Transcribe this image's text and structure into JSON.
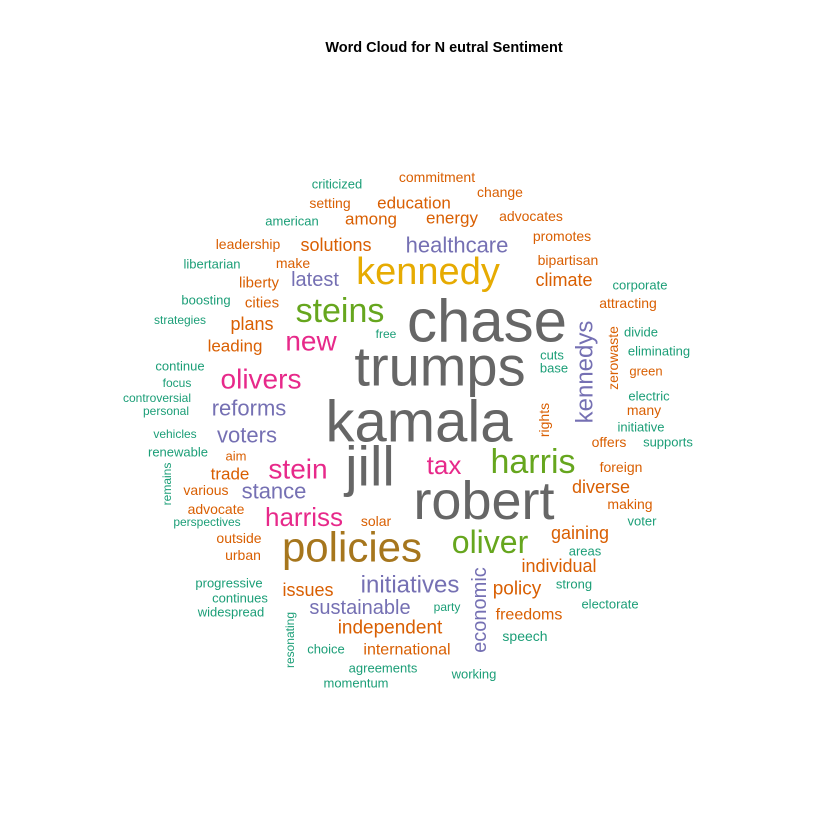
{
  "chart_data": {
    "type": "wordcloud",
    "title": "Word Cloud for N eutral Sentiment",
    "palette": {
      "grey": "#666666",
      "gold": "#E6AB02",
      "green": "#66A61E",
      "magenta": "#E7298A",
      "purple": "#7570B3",
      "orange": "#D95F02",
      "teal": "#1B9E77",
      "brown": "#A6761D"
    },
    "words": [
      {
        "text": "chase",
        "color": "grey"
      },
      {
        "text": "trumps",
        "color": "grey"
      },
      {
        "text": "kamala",
        "color": "grey"
      },
      {
        "text": "jill",
        "color": "grey"
      },
      {
        "text": "robert",
        "color": "grey"
      },
      {
        "text": "kennedy",
        "color": "gold"
      },
      {
        "text": "policies",
        "color": "brown"
      },
      {
        "text": "steins",
        "color": "green"
      },
      {
        "text": "harris",
        "color": "green"
      },
      {
        "text": "oliver",
        "color": "green"
      },
      {
        "text": "new",
        "color": "magenta"
      },
      {
        "text": "olivers",
        "color": "magenta"
      },
      {
        "text": "stein",
        "color": "magenta"
      },
      {
        "text": "tax",
        "color": "magenta"
      },
      {
        "text": "harriss",
        "color": "magenta"
      },
      {
        "text": "healthcare",
        "color": "purple"
      },
      {
        "text": "latest",
        "color": "purple"
      },
      {
        "text": "reforms",
        "color": "purple"
      },
      {
        "text": "voters",
        "color": "purple"
      },
      {
        "text": "stance",
        "color": "purple"
      },
      {
        "text": "initiatives",
        "color": "purple"
      },
      {
        "text": "sustainable",
        "color": "purple"
      },
      {
        "text": "kennedys",
        "color": "purple"
      },
      {
        "text": "economic",
        "color": "purple"
      },
      {
        "text": "solutions",
        "color": "orange"
      },
      {
        "text": "education",
        "color": "orange"
      },
      {
        "text": "energy",
        "color": "orange"
      },
      {
        "text": "among",
        "color": "orange"
      },
      {
        "text": "climate",
        "color": "orange"
      },
      {
        "text": "plans",
        "color": "orange"
      },
      {
        "text": "leading",
        "color": "orange"
      },
      {
        "text": "trade",
        "color": "orange"
      },
      {
        "text": "diverse",
        "color": "orange"
      },
      {
        "text": "gaining",
        "color": "orange"
      },
      {
        "text": "individual",
        "color": "orange"
      },
      {
        "text": "policy",
        "color": "orange"
      },
      {
        "text": "issues",
        "color": "orange"
      },
      {
        "text": "independent",
        "color": "orange"
      },
      {
        "text": "international",
        "color": "orange"
      },
      {
        "text": "freedoms",
        "color": "orange"
      },
      {
        "text": "commitment",
        "color": "orange"
      },
      {
        "text": "change",
        "color": "orange"
      },
      {
        "text": "setting",
        "color": "orange"
      },
      {
        "text": "advocates",
        "color": "orange"
      },
      {
        "text": "leadership",
        "color": "orange"
      },
      {
        "text": "promotes",
        "color": "orange"
      },
      {
        "text": "make",
        "color": "orange"
      },
      {
        "text": "bipartisan",
        "color": "orange"
      },
      {
        "text": "liberty",
        "color": "orange"
      },
      {
        "text": "cities",
        "color": "orange"
      },
      {
        "text": "attracting",
        "color": "orange"
      },
      {
        "text": "zerowaste",
        "color": "orange"
      },
      {
        "text": "rights",
        "color": "orange"
      },
      {
        "text": "many",
        "color": "orange"
      },
      {
        "text": "offers",
        "color": "orange"
      },
      {
        "text": "foreign",
        "color": "orange"
      },
      {
        "text": "making",
        "color": "orange"
      },
      {
        "text": "aim",
        "color": "orange"
      },
      {
        "text": "various",
        "color": "orange"
      },
      {
        "text": "advocate",
        "color": "orange"
      },
      {
        "text": "solar",
        "color": "orange"
      },
      {
        "text": "outside",
        "color": "orange"
      },
      {
        "text": "urban",
        "color": "orange"
      },
      {
        "text": "green",
        "color": "orange"
      },
      {
        "text": "criticized",
        "color": "teal"
      },
      {
        "text": "american",
        "color": "teal"
      },
      {
        "text": "libertarian",
        "color": "teal"
      },
      {
        "text": "boosting",
        "color": "teal"
      },
      {
        "text": "strategies",
        "color": "teal"
      },
      {
        "text": "free",
        "color": "teal"
      },
      {
        "text": "continue",
        "color": "teal"
      },
      {
        "text": "focus",
        "color": "teal"
      },
      {
        "text": "controversial",
        "color": "teal"
      },
      {
        "text": "personal",
        "color": "teal"
      },
      {
        "text": "vehicles",
        "color": "teal"
      },
      {
        "text": "renewable",
        "color": "teal"
      },
      {
        "text": "remains",
        "color": "teal"
      },
      {
        "text": "perspectives",
        "color": "teal"
      },
      {
        "text": "corporate",
        "color": "teal"
      },
      {
        "text": "divide",
        "color": "teal"
      },
      {
        "text": "eliminating",
        "color": "teal"
      },
      {
        "text": "cuts",
        "color": "teal"
      },
      {
        "text": "base",
        "color": "teal"
      },
      {
        "text": "electric",
        "color": "teal"
      },
      {
        "text": "initiative",
        "color": "teal"
      },
      {
        "text": "supports",
        "color": "teal"
      },
      {
        "text": "voter",
        "color": "teal"
      },
      {
        "text": "areas",
        "color": "teal"
      },
      {
        "text": "strong",
        "color": "teal"
      },
      {
        "text": "electorate",
        "color": "teal"
      },
      {
        "text": "progressive",
        "color": "teal"
      },
      {
        "text": "continues",
        "color": "teal"
      },
      {
        "text": "widespread",
        "color": "teal"
      },
      {
        "text": "party",
        "color": "teal"
      },
      {
        "text": "speech",
        "color": "teal"
      },
      {
        "text": "resonating",
        "color": "teal"
      },
      {
        "text": "choice",
        "color": "teal"
      },
      {
        "text": "agreements",
        "color": "teal"
      },
      {
        "text": "momentum",
        "color": "teal"
      },
      {
        "text": "working",
        "color": "teal"
      }
    ]
  }
}
